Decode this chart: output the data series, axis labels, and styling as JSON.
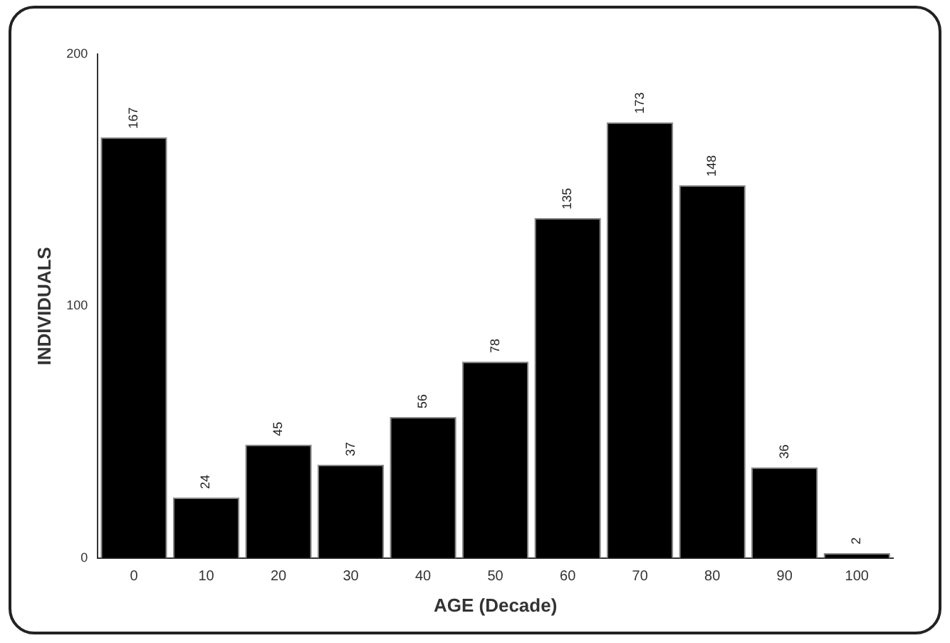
{
  "chart_data": {
    "type": "bar",
    "xlabel": "AGE (Decade)",
    "ylabel": "INDIVIDUALS",
    "categories": [
      "0",
      "10",
      "20",
      "30",
      "40",
      "50",
      "60",
      "70",
      "80",
      "90",
      "100"
    ],
    "values": [
      167,
      24,
      45,
      37,
      56,
      78,
      135,
      173,
      148,
      36,
      2
    ],
    "color": "#000000",
    "ylim": [
      0,
      200
    ],
    "yticks": [
      0,
      100,
      200
    ],
    "grid": false,
    "legend": false,
    "data_labels": true
  }
}
